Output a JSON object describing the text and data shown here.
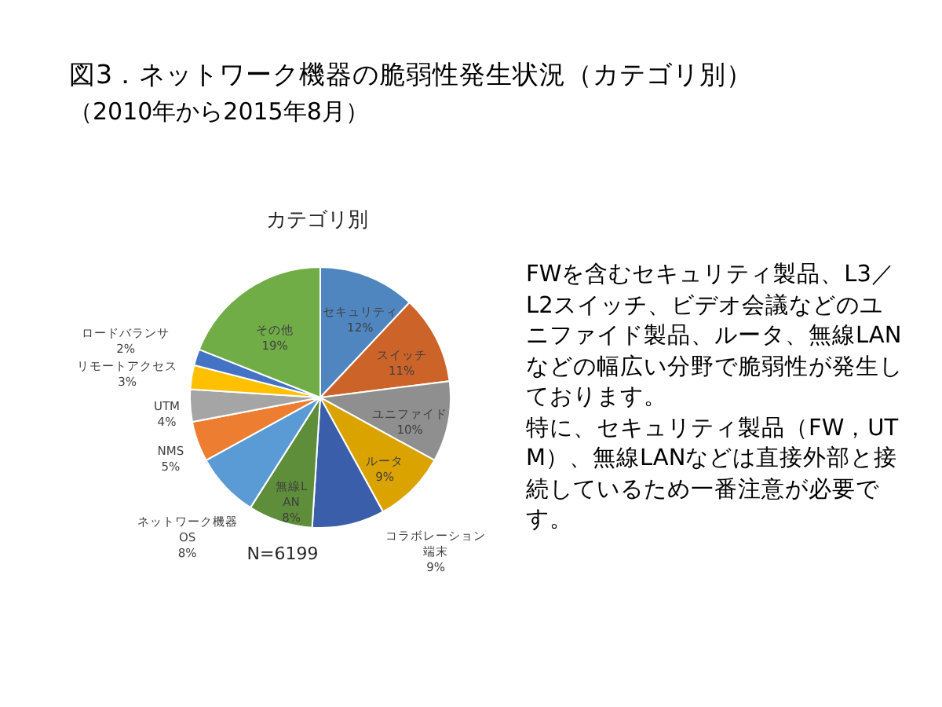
{
  "chart_data": {
    "type": "pie",
    "title": "図3．ネットワーク機器の脆弱性発生状況（カテゴリ別）",
    "subtitle": "（2010年から2015年8月）",
    "categories": [
      "セキュリティ",
      "スイッチ",
      "ユニファイド",
      "ルータ",
      "コラボレーション端末",
      "無線LAN",
      "ネットワーク機器OS",
      "NMS",
      "UTM",
      "リモートアクセス",
      "ロードバランサ",
      "その他"
    ],
    "values": [
      12,
      11,
      10,
      9,
      9,
      8,
      8,
      5,
      4,
      3,
      2,
      19
    ],
    "value_labels": [
      "12%",
      "11%",
      "10%",
      "9%",
      "9%",
      "8%",
      "8%",
      "5%",
      "4%",
      "3%",
      "2%",
      "19%"
    ],
    "colors": [
      "#4f86c0",
      "#cc6329",
      "#8f8f8f",
      "#dba300",
      "#3a5eaa",
      "#5e8e3a",
      "#5b9bd5",
      "#ed7d31",
      "#a5a5a5",
      "#ffc000",
      "#4472c4",
      "#70ad47"
    ],
    "legend": false,
    "annotations": [
      "カテゴリ別",
      "N=6199",
      "FWを含むセキュリティ製品、L3／L2スイッチ、ビデオ会議などのユニファイド製品、ルータ、無線LANなどの幅広い分野で脆弱性が発生しております。",
      "特に、セキュリティ製品（FW，UTM）、無線LANなどは直接外部と接続しているため一番注意が必要です。"
    ]
  }
}
